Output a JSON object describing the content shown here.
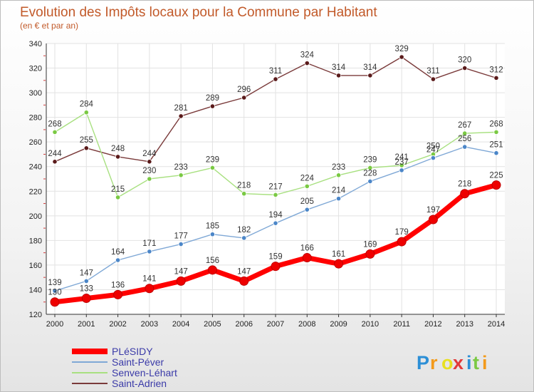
{
  "chart_data": {
    "type": "line",
    "title": "Evolution des Impôts locaux pour la Commune par Habitant",
    "subtitle": "(en € et par an)",
    "xlabel": "",
    "ylabel": "",
    "x": [
      2000,
      2001,
      2002,
      2003,
      2004,
      2005,
      2006,
      2007,
      2008,
      2009,
      2010,
      2011,
      2012,
      2013,
      2014
    ],
    "ylim": [
      120,
      340
    ],
    "yticks": [
      120,
      140,
      160,
      180,
      200,
      220,
      240,
      260,
      280,
      300,
      320,
      340
    ],
    "legend_position": "bottom-left",
    "series": [
      {
        "name": "PLéSIDY",
        "color": "#ff0000",
        "marker_color": "#ee0000",
        "values": [
          130,
          133,
          136,
          141,
          147,
          156,
          147,
          159,
          166,
          161,
          169,
          179,
          197,
          218,
          225
        ]
      },
      {
        "name": "Saint-Péver",
        "color": "#7fa8d6",
        "marker_color": "#4b86c8",
        "values": [
          139,
          147,
          164,
          171,
          177,
          185,
          182,
          194,
          205,
          214,
          228,
          237,
          247,
          256,
          251
        ]
      },
      {
        "name": "Senven-Léhart",
        "color": "#a8e080",
        "marker_color": "#7ac943",
        "values": [
          268,
          284,
          215,
          230,
          233,
          239,
          218,
          217,
          224,
          233,
          239,
          241,
          250,
          267,
          268
        ]
      },
      {
        "name": "Saint-Adrien",
        "color": "#7a3a3a",
        "marker_color": "#5a1a1a",
        "values": [
          244,
          255,
          248,
          244,
          281,
          289,
          296,
          311,
          324,
          314,
          314,
          329,
          311,
          320,
          312
        ]
      }
    ]
  },
  "logo": {
    "letters": [
      "P",
      "r",
      "o",
      "x",
      "i",
      "t",
      "i"
    ],
    "colors": [
      "#2c8fd6",
      "#f39a1b",
      "#e8e020",
      "#e23a3a",
      "#2c8fd6",
      "#7ac943",
      "#f39a1b"
    ]
  }
}
